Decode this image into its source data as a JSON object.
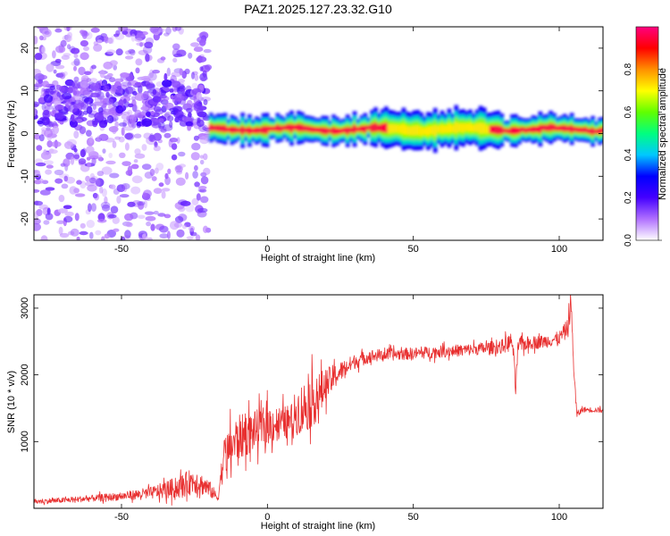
{
  "title": "PAZ1.2025.127.23.32.G10",
  "chart_data": [
    {
      "type": "heatmap",
      "xlabel": "Height of straight line (km)",
      "ylabel": "Frequency (Hz)",
      "xlim": [
        -80,
        115
      ],
      "ylim": [
        -25,
        25
      ],
      "xticks": [
        -50,
        0,
        50,
        100
      ],
      "yticks": [
        -20,
        -10,
        0,
        10,
        20
      ],
      "grid": false,
      "colorbar": {
        "label": "Normalized spectral amplitude",
        "range": [
          0.0,
          1.0
        ],
        "ticks": [
          "0.0",
          "0.2",
          "0.4",
          "0.6",
          "0.8"
        ],
        "colors": [
          "#ffffff",
          "#b070ff",
          "#4400ff",
          "#0000ff",
          "#00c8ff",
          "#00ff80",
          "#60ff00",
          "#ffff00",
          "#ff9000",
          "#ff0000",
          "#ff0080"
        ]
      },
      "regions": [
        {
          "x_range": [
            -80,
            -20
          ],
          "pattern": "scattered noise",
          "freq_range": [
            -25,
            25
          ]
        },
        {
          "x_range": [
            -20,
            115
          ],
          "pattern": "concentrated band",
          "center_freq_hz": 1,
          "peak_amplitude": 1.0
        }
      ]
    },
    {
      "type": "line",
      "xlabel": "Height of straight line (km)",
      "ylabel": "SNR (10 * v/v)",
      "xlim": [
        -80,
        115
      ],
      "ylim": [
        0,
        3200
      ],
      "xticks": [
        -50,
        0,
        50,
        100
      ],
      "yticks": [
        1000,
        2000,
        3000
      ],
      "grid": false,
      "series": [
        {
          "color": "#e83030",
          "x": [
            -80,
            -70,
            -60,
            -50,
            -40,
            -30,
            -25,
            -20,
            -17,
            -15,
            -12,
            -10,
            -5,
            0,
            5,
            8,
            10,
            12,
            15,
            18,
            20,
            25,
            30,
            35,
            40,
            50,
            60,
            70,
            80,
            84,
            85,
            86,
            90,
            95,
            100,
            103,
            104,
            105,
            106,
            108,
            115
          ],
          "y": [
            100,
            120,
            150,
            180,
            230,
            320,
            420,
            300,
            150,
            750,
            950,
            1050,
            1150,
            1250,
            1280,
            1300,
            1450,
            1500,
            1600,
            1700,
            1850,
            2050,
            2200,
            2280,
            2300,
            2320,
            2350,
            2380,
            2420,
            2500,
            1800,
            2450,
            2480,
            2500,
            2550,
            2700,
            3100,
            2100,
            1400,
            1480,
            1470
          ],
          "noise_amplitude": [
            40,
            40,
            50,
            60,
            90,
            170,
            200,
            130,
            60,
            300,
            350,
            350,
            300,
            300,
            250,
            250,
            350,
            400,
            400,
            350,
            250,
            150,
            110,
            100,
            90,
            90,
            90,
            90,
            100,
            150,
            150,
            120,
            100,
            100,
            100,
            150,
            200,
            100,
            60,
            40,
            40
          ]
        }
      ]
    }
  ]
}
